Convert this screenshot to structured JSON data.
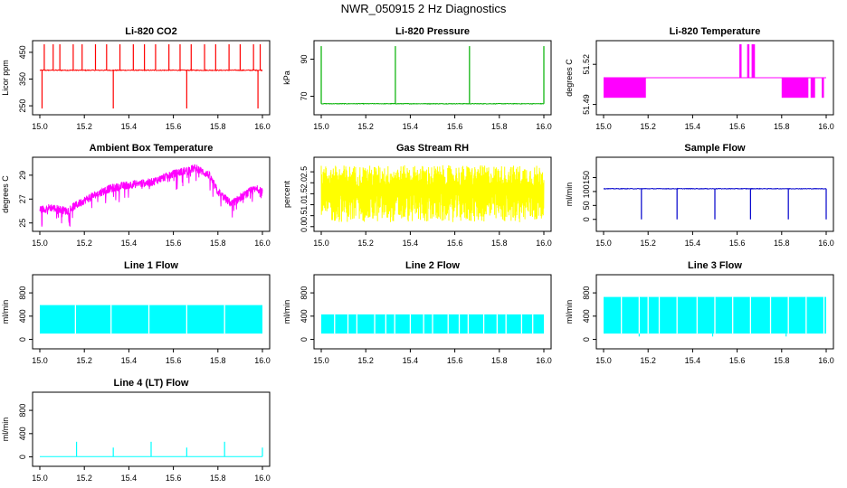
{
  "figure": {
    "title": "NWR_050915  2 Hz Diagnostics"
  },
  "chart_data": [
    {
      "id": "co2",
      "type": "line",
      "title": "Li-820 CO2",
      "ylabel": "Licor ppm",
      "color": "#ff0000",
      "xlim": [
        15.0,
        16.0
      ],
      "ylim": [
        230,
        480
      ],
      "yticks": [
        250,
        350,
        450
      ],
      "xticks": [
        "15.0",
        "15.2",
        "15.4",
        "15.6",
        "15.8",
        "16.0"
      ],
      "series": {
        "baseline": 383,
        "noise": 3,
        "spikes_up": [
          15.02,
          15.06,
          15.09,
          15.15,
          15.19,
          15.25,
          15.3,
          15.36,
          15.42,
          15.47,
          15.52,
          15.58,
          15.63,
          15.68,
          15.74,
          15.79,
          15.85,
          15.9,
          15.96,
          15.99
        ],
        "spike_up_to": 480,
        "spikes_down": [
          15.01,
          15.33,
          15.66,
          15.98
        ],
        "spike_down_to": 240
      }
    },
    {
      "id": "pressure",
      "type": "line",
      "title": "Li-820 Pressure",
      "ylabel": "kPa",
      "color": "#00b000",
      "xlim": [
        15.0,
        16.0
      ],
      "ylim": [
        62,
        98
      ],
      "yticks": [
        70,
        90
      ],
      "xticks": [
        "15.0",
        "15.2",
        "15.4",
        "15.6",
        "15.8",
        "16.0"
      ],
      "series": {
        "baseline": 66.0,
        "noise": 0.3,
        "spikes_up": [
          15.0,
          15.333,
          15.666,
          16.0
        ],
        "spike_up_to": 97
      }
    },
    {
      "id": "temp820",
      "type": "band",
      "title": "Li-820 Temperature",
      "ylabel": "degrees C",
      "color": "#ff00ff",
      "xlim": [
        15.0,
        16.0
      ],
      "ylim": [
        51.485,
        51.535
      ],
      "yticks": [
        51.49,
        51.52
      ],
      "ytick_labels": [
        "51.49",
        "51.52"
      ],
      "xticks": [
        "15.0",
        "15.2",
        "15.4",
        "15.6",
        "15.8",
        "16.0"
      ],
      "series": {
        "level": 51.51,
        "lower": 51.495,
        "upper": 51.535,
        "band_ranges": [
          [
            15.0,
            15.19
          ],
          [
            15.8,
            15.92
          ],
          [
            15.93,
            15.95
          ],
          [
            15.98,
            15.99
          ]
        ],
        "up_ranges": [
          [
            15.61,
            15.62
          ],
          [
            15.645,
            15.655
          ],
          [
            15.665,
            15.68
          ]
        ]
      }
    },
    {
      "id": "ambient",
      "type": "line",
      "title": "Ambient Box Temperature",
      "ylabel": "degrees C",
      "color": "#ff00ff",
      "xlim": [
        15.0,
        16.0
      ],
      "ylim": [
        24.6,
        30.2
      ],
      "yticks": [
        25,
        27,
        29
      ],
      "xticks": [
        "15.0",
        "15.2",
        "15.4",
        "15.6",
        "15.8",
        "16.0"
      ],
      "series": {
        "trend_x": [
          15.0,
          15.05,
          15.12,
          15.2,
          15.3,
          15.4,
          15.5,
          15.6,
          15.7,
          15.76,
          15.8,
          15.86,
          15.9,
          15.95,
          16.0
        ],
        "trend_y": [
          26.1,
          26.3,
          26.0,
          26.9,
          27.8,
          28.2,
          28.4,
          29.1,
          29.6,
          29.0,
          27.6,
          26.6,
          27.1,
          27.7,
          27.9
        ],
        "noise": 0.35,
        "dips": 0.9
      }
    },
    {
      "id": "rh",
      "type": "line",
      "title": "Gas Stream RH",
      "ylabel": "percent",
      "color": "#ffff00",
      "xlim": [
        15.0,
        16.0
      ],
      "ylim": [
        -0.05,
        3.0
      ],
      "yticks": [
        0.0,
        0.5,
        1.0,
        1.5,
        2.0,
        2.5
      ],
      "ytick_labels": [
        "0.0",
        "0.5",
        "1.0",
        "1.5",
        "2.0",
        "2.5"
      ],
      "xticks": [
        "15.0",
        "15.2",
        "15.4",
        "15.6",
        "15.8",
        "16.0"
      ],
      "series": {
        "mean": 1.4,
        "min": 0.2,
        "max": 2.8
      }
    },
    {
      "id": "sample",
      "type": "line",
      "title": "Sample Flow",
      "ylabel": "ml/min",
      "color": "#0000cc",
      "xlim": [
        15.0,
        16.0
      ],
      "ylim": [
        -30,
        210
      ],
      "yticks": [
        0,
        50,
        100,
        150
      ],
      "xticks": [
        "15.0",
        "15.2",
        "15.4",
        "15.6",
        "15.8",
        "16.0"
      ],
      "series": {
        "baseline": 110,
        "noise": 2,
        "spikes_down": [
          15.17,
          15.33,
          15.5,
          15.66,
          15.83,
          16.0
        ],
        "spike_down_to": 0
      }
    },
    {
      "id": "line1",
      "type": "line",
      "title": "Line 1 Flow",
      "ylabel": "ml/min",
      "color": "#00ffff",
      "xlim": [
        15.0,
        16.0
      ],
      "ylim": [
        -100,
        1050
      ],
      "yticks": [
        0,
        400,
        800
      ],
      "xticks": [
        "15.0",
        "15.2",
        "15.4",
        "15.6",
        "15.8",
        "16.0"
      ],
      "series": {
        "low": 100,
        "high": 590,
        "gaps": [
          15.16,
          15.32,
          15.49,
          15.66,
          15.83
        ]
      }
    },
    {
      "id": "line2",
      "type": "line",
      "title": "Line 2 Flow",
      "ylabel": "ml/min",
      "color": "#00ffff",
      "xlim": [
        15.0,
        16.0
      ],
      "ylim": [
        -100,
        1050
      ],
      "yticks": [
        0,
        400,
        800
      ],
      "xticks": [
        "15.0",
        "15.2",
        "15.4",
        "15.6",
        "15.8",
        "16.0"
      ],
      "series": {
        "low": 100,
        "high": 430,
        "gaps": [
          15.06,
          15.12,
          15.16,
          15.24,
          15.29,
          15.33,
          15.4,
          15.46,
          15.5,
          15.57,
          15.62,
          15.66,
          15.73,
          15.79,
          15.83,
          15.9,
          15.95
        ]
      }
    },
    {
      "id": "line3",
      "type": "line",
      "title": "Line 3 Flow",
      "ylabel": "ml/min",
      "color": "#00ffff",
      "xlim": [
        15.0,
        16.0
      ],
      "ylim": [
        -100,
        1050
      ],
      "yticks": [
        0,
        400,
        800
      ],
      "xticks": [
        "15.0",
        "15.2",
        "15.4",
        "15.6",
        "15.8",
        "16.0"
      ],
      "series": {
        "low": 100,
        "high": 730,
        "gaps": [
          15.08,
          15.16,
          15.2,
          15.25,
          15.33,
          15.42,
          15.5,
          15.58,
          15.66,
          15.75,
          15.83,
          15.91,
          15.99
        ],
        "dips_to": 50,
        "dips": [
          15.16,
          15.49,
          15.82
        ]
      }
    },
    {
      "id": "line4",
      "type": "line",
      "title": "Line 4 (LT) Flow",
      "ylabel": "ml/min",
      "color": "#00ffff",
      "xlim": [
        15.0,
        16.0
      ],
      "ylim": [
        -100,
        1050
      ],
      "yticks": [
        0,
        400,
        800
      ],
      "xticks": [
        "15.0",
        "15.2",
        "15.4",
        "15.6",
        "15.8",
        "16.0"
      ],
      "series": {
        "baseline": 5,
        "spikes_up": [
          15.165,
          15.33,
          15.5,
          15.66,
          15.83,
          16.0
        ],
        "spike_heights": [
          260,
          160,
          260,
          160,
          260,
          160
        ]
      }
    }
  ]
}
